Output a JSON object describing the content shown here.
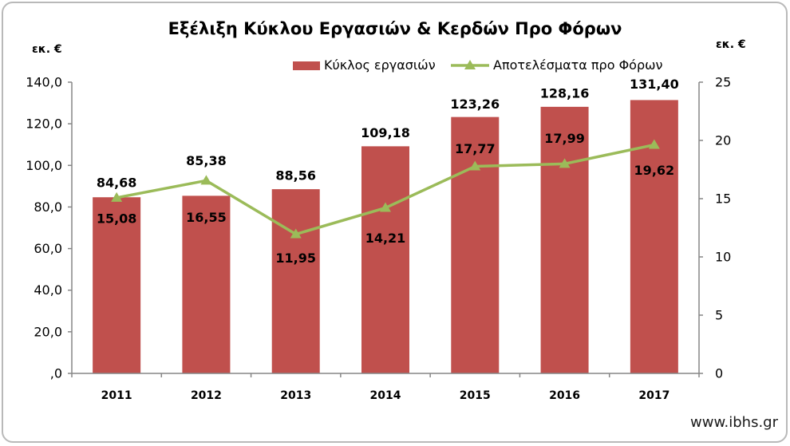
{
  "chart_data": {
    "type": "bar",
    "title": "Εξέλιξη Κύκλου Εργασιών & Κερδών Προ Φόρων",
    "categories": [
      "2011",
      "2012",
      "2013",
      "2014",
      "2015",
      "2016",
      "2017"
    ],
    "series": [
      {
        "name": "Κύκλος εργασιών",
        "type": "bar",
        "axis": "left",
        "color": "#C0504D",
        "values": [
          84.68,
          85.38,
          88.56,
          109.18,
          123.26,
          128.16,
          131.4
        ],
        "labels": [
          "84,68",
          "85,38",
          "88,56",
          "109,18",
          "123,26",
          "128,16",
          "131,40"
        ]
      },
      {
        "name": "Αποτελέσματα προ Φόρων",
        "type": "line",
        "axis": "right",
        "marker": "triangle",
        "color": "#9BBB59",
        "values": [
          15.08,
          16.55,
          11.95,
          14.21,
          17.77,
          17.99,
          19.62
        ],
        "labels": [
          "15,08",
          "16,55",
          "11,95",
          "14,21",
          "17,77",
          "17,99",
          "19,62"
        ]
      }
    ],
    "y_left": {
      "label": "εκ. €",
      "range": [
        0,
        140
      ],
      "ticks": [
        0,
        20,
        40,
        60,
        80,
        100,
        120,
        140
      ],
      "tick_labels": [
        ",0",
        "20,0",
        "40,0",
        "60,0",
        "80,0",
        "100,0",
        "120,0",
        "140,0"
      ]
    },
    "y_right": {
      "label": "εκ. €",
      "range": [
        0,
        25
      ],
      "ticks": [
        0,
        5,
        10,
        15,
        20,
        25
      ],
      "tick_labels": [
        "0",
        "5",
        "10",
        "15",
        "20",
        "25"
      ]
    },
    "grid": false,
    "legend": "top",
    "axis_color": "#868686"
  },
  "footer": {
    "text": "www.ibhs.gr"
  }
}
